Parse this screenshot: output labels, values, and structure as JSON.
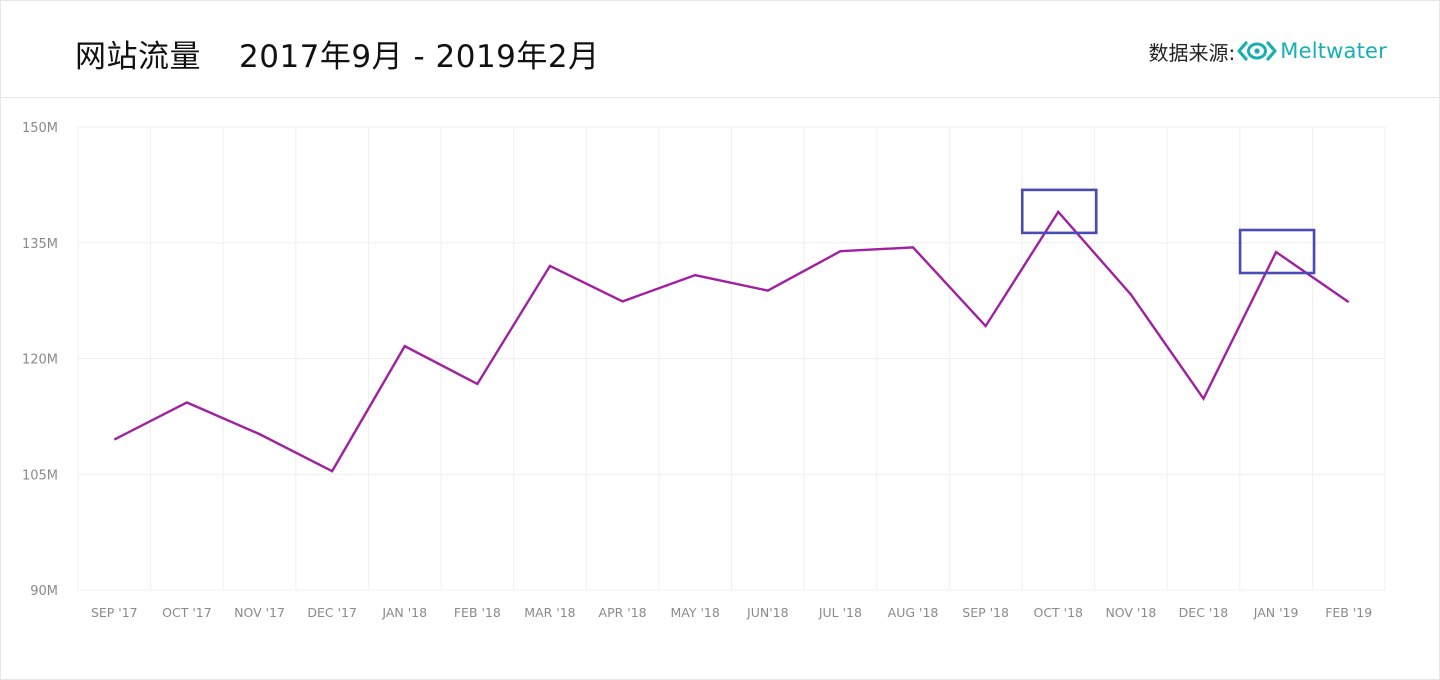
{
  "header": {
    "title": "网站流量",
    "date_range": "2017年9月 - 2019年2月",
    "source_label": "数据来源:",
    "brand_name": "Meltwater",
    "brand_icon": "meltwater-logo-icon"
  },
  "colors": {
    "line": "#a020a0",
    "highlight_box": "#4b4bb5",
    "grid": "#efefef",
    "brand": "#16b0b0"
  },
  "chart_data": {
    "type": "line",
    "categories": [
      "SEP '17",
      "OCT '17",
      "NOV '17",
      "DEC '17",
      "JAN '18",
      "FEB '18",
      "MAR '18",
      "APR '18",
      "MAY '18",
      "JUN'18",
      "JUL '18",
      "AUG '18",
      "SEP '18",
      "OCT '18",
      "NOV '18",
      "DEC '18",
      "JAN '19",
      "FEB '19"
    ],
    "series": [
      {
        "values": [
          109.5,
          114.3,
          110.2,
          105.4,
          121.6,
          116.7,
          132.0,
          127.4,
          130.8,
          128.8,
          133.9,
          134.4,
          124.2,
          139.0,
          128.3,
          114.8,
          133.8,
          127.3
        ]
      }
    ],
    "y_ticks": [
      "90M",
      "105M",
      "120M",
      "135M",
      "150M"
    ],
    "y_tick_values": [
      90,
      105,
      120,
      135,
      150
    ],
    "ylim": [
      90,
      150
    ],
    "grid": true,
    "highlights": [
      "OCT '18",
      "JAN '19"
    ]
  }
}
